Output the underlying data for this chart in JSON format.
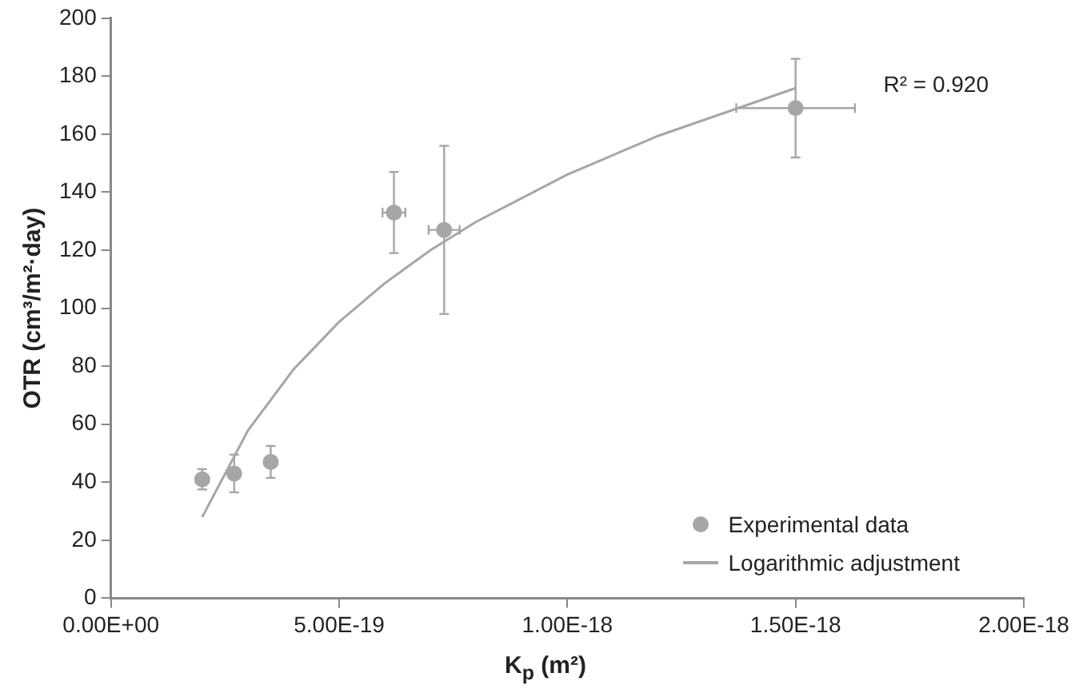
{
  "chart_data": {
    "type": "scatter",
    "xlabel": "K$_{p}$ (m²)",
    "ylabel": "OTR (cm³/m²·day)",
    "xlim": [
      0,
      2e-18
    ],
    "xticks": [
      {
        "value": 0,
        "label": "0.00E+00"
      },
      {
        "value": 5e-19,
        "label": "5.00E-19"
      },
      {
        "value": 1e-18,
        "label": "1.00E-18"
      },
      {
        "value": 1.5e-18,
        "label": "1.50E-18"
      },
      {
        "value": 2e-18,
        "label": "2.00E-18"
      }
    ],
    "ylim": [
      0,
      200
    ],
    "yticks": [
      0,
      20,
      40,
      60,
      80,
      100,
      120,
      140,
      160,
      180,
      200
    ],
    "grid": false,
    "legend": "bottom right",
    "annotations": [
      "R² = 0.920"
    ],
    "series": [
      {
        "name": "Experimental data",
        "color": "#a6a6a6",
        "marker": "circle",
        "x": [
          2e-19,
          2.7e-19,
          3.5e-19,
          6.2e-19,
          7.3e-19,
          1.5e-18
        ],
        "values": [
          41,
          43,
          47,
          133,
          127,
          169
        ],
        "errors": [
          3.5,
          6.5,
          5.5,
          14,
          29,
          17
        ],
        "xerrors": [
          null,
          null,
          null,
          2.5e-20,
          3.4e-20,
          1.3e-19
        ]
      },
      {
        "name": "Logarithmic adjustment",
        "type": "line",
        "color": "#a6a6a6",
        "marker": "none",
        "x": [
          2e-19,
          3e-19,
          4e-19,
          5e-19,
          6e-19,
          7e-19,
          8e-19,
          1e-18,
          1.2e-18,
          1.5e-18
        ],
        "values": [
          28,
          57.8,
          78.9,
          95.3,
          108.6,
          120,
          129.8,
          146.1,
          159.5,
          175.9
        ]
      }
    ]
  }
}
